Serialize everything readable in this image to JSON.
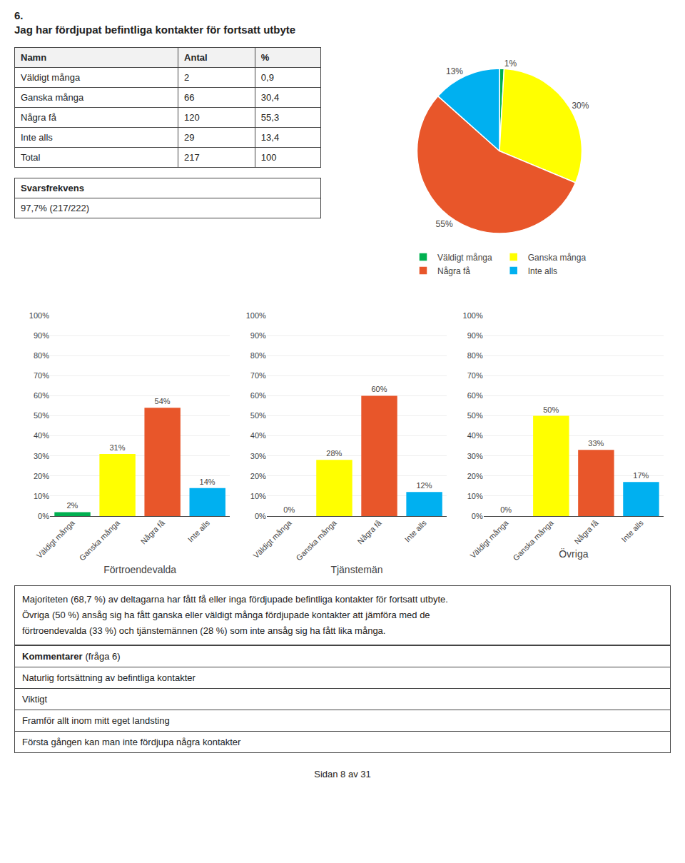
{
  "title": "6.",
  "subtitle": "Jag har fördjupat befintliga kontakter för fortsatt utbyte",
  "table": {
    "headers": [
      "Namn",
      "Antal",
      "%"
    ],
    "rows": [
      [
        "Väldigt många",
        "2",
        "0,9"
      ],
      [
        "Ganska många",
        "66",
        "30,4"
      ],
      [
        "Några få",
        "120",
        "55,3"
      ],
      [
        "Inte alls",
        "29",
        "13,4"
      ],
      [
        "Total",
        "217",
        "100"
      ]
    ]
  },
  "response_rate": {
    "label": "Svarsfrekvens",
    "value": "97,7% (217/222)"
  },
  "analysis": [
    "Majoriteten (68,7 %) av deltagarna har fått få eller inga fördjupade befintliga kontakter för fortsatt utbyte.",
    "Övriga (50 %) ansåg sig ha fått ganska eller väldigt många fördjupade kontakter att jämföra med de",
    "förtroendevalda (33 %) och tjänstemännen (28 %) som inte ansåg sig ha fått lika många."
  ],
  "comments_title": "Kommentarer",
  "comments_subtitle": "(fråga 6)",
  "comments": [
    "Naturlig fortsättning av befintliga kontakter",
    "Viktigt",
    "Framför allt inom mitt eget landsting",
    "Första gången kan man inte fördjupa några kontakter"
  ],
  "footer": "Sidan 8 av 31",
  "chart_data": [
    {
      "type": "pie",
      "categories": [
        "Väldigt många",
        "Ganska många",
        "Några få",
        "Inte alls"
      ],
      "values": [
        0.9,
        30.4,
        55.3,
        13.4
      ],
      "value_labels": [
        "1%",
        "30%",
        "55%",
        "13%"
      ],
      "colors": [
        "#00b050",
        "#ffff00",
        "#e8562a",
        "#00b0f0"
      ],
      "legend": "bottom"
    },
    {
      "type": "bar",
      "title": "Förtroendevalda",
      "categories": [
        "Väldigt många",
        "Ganska många",
        "Några få",
        "Inte alls"
      ],
      "values": [
        2,
        31,
        54,
        14
      ],
      "value_labels": [
        "2%",
        "31%",
        "54%",
        "14%"
      ],
      "colors": [
        "#00b050",
        "#ffff00",
        "#e8562a",
        "#00b0f0"
      ],
      "ylim": [
        0,
        100
      ],
      "yticks": [
        {
          "value": 0,
          "label": "0%"
        },
        {
          "value": 10,
          "label": "10%"
        },
        {
          "value": 20,
          "label": "20%"
        },
        {
          "value": 30,
          "label": "30%"
        },
        {
          "value": 40,
          "label": "40%"
        },
        {
          "value": 50,
          "label": "50%"
        },
        {
          "value": 60,
          "label": "60%"
        },
        {
          "value": 70,
          "label": "70%"
        },
        {
          "value": 80,
          "label": "80%"
        },
        {
          "value": 90,
          "label": "90%"
        },
        {
          "value": 100,
          "label": "100%"
        }
      ],
      "grid": true
    },
    {
      "type": "bar",
      "title": "Tjänstemän",
      "categories": [
        "Väldigt många",
        "Ganska många",
        "Några få",
        "Inte alls"
      ],
      "values": [
        0,
        28,
        60,
        12
      ],
      "value_labels": [
        "0%",
        "28%",
        "60%",
        "12%"
      ],
      "colors": [
        "#00b050",
        "#ffff00",
        "#e8562a",
        "#00b0f0"
      ],
      "ylim": [
        0,
        100
      ],
      "yticks": [
        {
          "value": 0,
          "label": "0%"
        },
        {
          "value": 10,
          "label": "10%"
        },
        {
          "value": 20,
          "label": "20%"
        },
        {
          "value": 30,
          "label": "30%"
        },
        {
          "value": 40,
          "label": "40%"
        },
        {
          "value": 50,
          "label": "50%"
        },
        {
          "value": 60,
          "label": "60%"
        },
        {
          "value": 70,
          "label": "70%"
        },
        {
          "value": 80,
          "label": "80%"
        },
        {
          "value": 90,
          "label": "90%"
        },
        {
          "value": 100,
          "label": "100%"
        }
      ],
      "grid": true
    },
    {
      "type": "bar",
      "title": "Övriga",
      "categories": [
        "Väldigt många",
        "Ganska många",
        "Några få",
        "Inte alls"
      ],
      "values": [
        0,
        50,
        33,
        17
      ],
      "value_labels": [
        "0%",
        "50%",
        "33%",
        "17%"
      ],
      "colors": [
        "#00b050",
        "#ffff00",
        "#e8562a",
        "#00b0f0"
      ],
      "ylim": [
        0,
        100
      ],
      "yticks": [
        {
          "value": 0,
          "label": "0%"
        },
        {
          "value": 10,
          "label": "10%"
        },
        {
          "value": 20,
          "label": "20%"
        },
        {
          "value": 30,
          "label": "30%"
        },
        {
          "value": 40,
          "label": "40%"
        },
        {
          "value": 50,
          "label": "50%"
        },
        {
          "value": 60,
          "label": "60%"
        },
        {
          "value": 70,
          "label": "70%"
        },
        {
          "value": 80,
          "label": "80%"
        },
        {
          "value": 90,
          "label": "90%"
        },
        {
          "value": 100,
          "label": "100%"
        }
      ],
      "grid": true
    }
  ]
}
